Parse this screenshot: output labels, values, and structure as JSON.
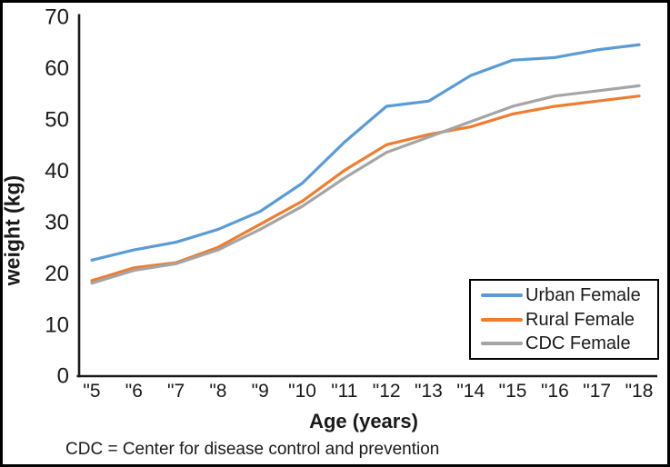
{
  "figure": {
    "caption": "CDC = Center for disease control and prevention"
  },
  "chart_data": {
    "type": "line",
    "title": "",
    "xlabel": "Age (years)",
    "ylabel": "weight (kg)",
    "x_tick_labels": [
      "\"5",
      "\"6",
      "\"7",
      "\"8",
      "\"9",
      "\"10",
      "\"11",
      "\"12",
      "\"13",
      "\"14",
      "\"15",
      "\"16",
      "\"17",
      "\"18"
    ],
    "x_values": [
      5,
      6,
      7,
      8,
      9,
      10,
      11,
      12,
      13,
      14,
      15,
      16,
      17,
      18
    ],
    "y_ticks": [
      0,
      10,
      20,
      30,
      40,
      50,
      60,
      70
    ],
    "ylim": [
      0,
      70
    ],
    "grid": false,
    "legend_position": "inside-bottom-right",
    "axis_color": "#1a1a1a",
    "series": [
      {
        "name": "Urban Female",
        "color": "#5B9BD5",
        "values": [
          22.5,
          24.5,
          26,
          28.5,
          32,
          37.5,
          45.5,
          52.5,
          53.5,
          58.5,
          61.5,
          62,
          63.5,
          64.5
        ]
      },
      {
        "name": "Rural Female",
        "color": "#ED7D31",
        "values": [
          18.5,
          21,
          22,
          25,
          29.5,
          34,
          40,
          45,
          47,
          48.5,
          51,
          52.5,
          53.5,
          54.5
        ]
      },
      {
        "name": "CDC Female",
        "color": "#A5A5A5",
        "values": [
          18,
          20.5,
          21.8,
          24.5,
          28.5,
          33,
          38.5,
          43.5,
          46.5,
          49.5,
          52.5,
          54.5,
          55.5,
          56.5
        ]
      }
    ]
  }
}
